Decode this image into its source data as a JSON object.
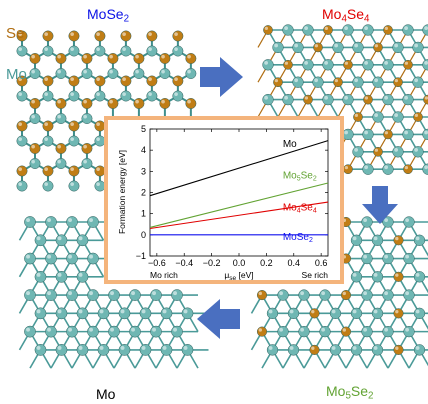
{
  "labels": {
    "top_left": {
      "main": "MoSe",
      "sub": "2",
      "color": "#0b12e6"
    },
    "top_right": {
      "main": "Mo",
      "sub1": "4",
      "mid": "Se",
      "sub2": "4",
      "color": "#e00000"
    },
    "bottom_right": {
      "main": "Mo",
      "sub1": "5",
      "mid": "Se",
      "sub2": "2",
      "color": "#62a333"
    },
    "bottom_left": {
      "main": "Mo",
      "color": "#000000"
    },
    "legend_se": {
      "text": "Se",
      "color": "#b06e12"
    },
    "legend_mo": {
      "text": "Mo",
      "color": "#4a9a98"
    }
  },
  "colors": {
    "mo_atom": "#6fb7b3",
    "se_atom": "#c07d15",
    "bond": "#3f8f8c",
    "arrow": "#4a6fc0",
    "inset_border": "#f4b47c"
  },
  "chart_data": {
    "type": "line",
    "xlabel_main": "μ",
    "xlabel_sub": "se",
    "xlabel_unit": " [eV]",
    "ylabel": "Formation energy [eV]",
    "xlim": [
      -0.65,
      0.65
    ],
    "ylim": [
      -1,
      5
    ],
    "xticks": [
      -0.6,
      -0.4,
      -0.2,
      0.0,
      0.2,
      0.4,
      0.6
    ],
    "xtick_labels": [
      "−0.6",
      "−0.4",
      "−0.2",
      "0.0",
      "0.2",
      "0.4",
      "0.6"
    ],
    "yticks": [
      -1,
      0,
      1,
      2,
      3,
      4,
      5
    ],
    "ytick_labels": [
      "−1",
      "0",
      "1",
      "2",
      "3",
      "4",
      "5"
    ],
    "annotations": {
      "left": "Mo rich",
      "right": "Se rich"
    },
    "series": [
      {
        "name": "Mo",
        "sub": "",
        "name2": "",
        "sub2": "",
        "color": "#000000",
        "x": [
          -0.65,
          0.65
        ],
        "y": [
          1.85,
          4.45
        ]
      },
      {
        "name": "Mo",
        "sub": "5",
        "name2": "Se",
        "sub2": "2",
        "color": "#62a333",
        "x": [
          -0.65,
          0.65
        ],
        "y": [
          0.35,
          2.45
        ]
      },
      {
        "name": "Mo",
        "sub": "4",
        "name2": "Se",
        "sub2": "4",
        "color": "#e00000",
        "x": [
          -0.65,
          0.65
        ],
        "y": [
          0.3,
          1.55
        ]
      },
      {
        "name": "MoSe",
        "sub": "2",
        "name2": "",
        "sub2": "",
        "color": "#1010ee",
        "x": [
          -0.65,
          0.65
        ],
        "y": [
          0.0,
          0.0
        ]
      }
    ]
  }
}
